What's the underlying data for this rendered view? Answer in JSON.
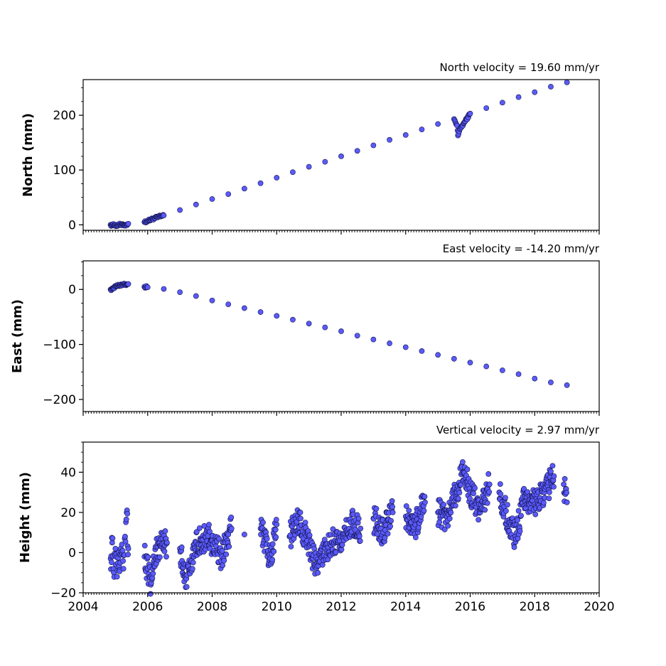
{
  "chart_data": [
    {
      "type": "scatter",
      "title": "North velocity = 19.60 mm/yr",
      "ylabel": "North (mm)",
      "xlim": [
        2004,
        2020
      ],
      "ylim": [
        -10,
        265
      ],
      "yticks": [
        0,
        100,
        200
      ],
      "ytick_labels": [
        "0",
        "100",
        "200"
      ],
      "velocity_mm_per_yr": 19.6,
      "color": "#5a5afa",
      "series": [
        {
          "points": [
            [
              2004.85,
              0
            ],
            [
              2004.9,
              0.5
            ],
            [
              2004.95,
              -1
            ],
            [
              2005.0,
              0
            ],
            [
              2005.05,
              -2
            ],
            [
              2005.1,
              1
            ],
            [
              2005.15,
              0
            ],
            [
              2005.2,
              -1
            ],
            [
              2005.25,
              0
            ],
            [
              2005.3,
              -0.5
            ],
            [
              2005.35,
              0.5
            ],
            [
              2005.4,
              2
            ],
            [
              2005.9,
              5
            ],
            [
              2006.0,
              7
            ],
            [
              2006.2,
              12
            ],
            [
              2006.5,
              17
            ],
            [
              2007.0,
              27
            ],
            [
              2007.5,
              37
            ],
            [
              2008.0,
              47
            ],
            [
              2008.5,
              56
            ],
            [
              2009.0,
              66
            ],
            [
              2009.5,
              76
            ],
            [
              2010.0,
              86
            ],
            [
              2010.5,
              96
            ],
            [
              2011.0,
              106
            ],
            [
              2011.5,
              115
            ],
            [
              2012.0,
              125
            ],
            [
              2012.5,
              135
            ],
            [
              2013.0,
              145
            ],
            [
              2013.5,
              155
            ],
            [
              2014.0,
              164
            ],
            [
              2014.5,
              174
            ],
            [
              2015.0,
              184
            ],
            [
              2015.5,
              193
            ],
            [
              2015.6,
              181
            ],
            [
              2015.62,
              163
            ],
            [
              2015.7,
              176
            ],
            [
              2016.0,
              203
            ],
            [
              2016.5,
              213
            ],
            [
              2017.0,
              223
            ],
            [
              2017.5,
              233
            ],
            [
              2018.0,
              242
            ],
            [
              2018.5,
              252
            ],
            [
              2019.0,
              260
            ]
          ]
        }
      ]
    },
    {
      "type": "scatter",
      "title": "East velocity = -14.20 mm/yr",
      "ylabel": "East (mm)",
      "xlim": [
        2004,
        2020
      ],
      "ylim": [
        -222,
        52
      ],
      "yticks": [
        -200,
        -100,
        0
      ],
      "ytick_labels": [
        "−200",
        "−100",
        "0"
      ],
      "velocity_mm_per_yr": -14.2,
      "color": "#5a5afa",
      "series": [
        {
          "points": [
            [
              2004.85,
              0
            ],
            [
              2004.9,
              2
            ],
            [
              2004.95,
              3
            ],
            [
              2005.0,
              5
            ],
            [
              2005.05,
              6
            ],
            [
              2005.1,
              7
            ],
            [
              2005.15,
              8
            ],
            [
              2005.2,
              9
            ],
            [
              2005.25,
              10
            ],
            [
              2005.3,
              10
            ],
            [
              2005.35,
              9
            ],
            [
              2005.4,
              10
            ],
            [
              2005.9,
              5
            ],
            [
              2006.0,
              4
            ],
            [
              2006.5,
              1
            ],
            [
              2007.0,
              -5
            ],
            [
              2007.5,
              -12
            ],
            [
              2008.0,
              -20
            ],
            [
              2008.5,
              -27
            ],
            [
              2009.0,
              -34
            ],
            [
              2009.5,
              -41
            ],
            [
              2010.0,
              -48
            ],
            [
              2010.5,
              -55
            ],
            [
              2011.0,
              -62
            ],
            [
              2011.5,
              -69
            ],
            [
              2012.0,
              -76
            ],
            [
              2012.5,
              -84
            ],
            [
              2013.0,
              -91
            ],
            [
              2013.5,
              -98
            ],
            [
              2014.0,
              -105
            ],
            [
              2014.5,
              -112
            ],
            [
              2015.0,
              -119
            ],
            [
              2015.5,
              -126
            ],
            [
              2016.0,
              -133
            ],
            [
              2016.5,
              -140
            ],
            [
              2017.0,
              -147
            ],
            [
              2017.5,
              -154
            ],
            [
              2018.0,
              -162
            ],
            [
              2018.5,
              -169
            ],
            [
              2019.0,
              -174
            ]
          ]
        }
      ]
    },
    {
      "type": "scatter",
      "title": "Vertical velocity = 2.97 mm/yr",
      "ylabel": "Height (mm)",
      "xlim": [
        2004,
        2020
      ],
      "ylim": [
        -20,
        55
      ],
      "yticks": [
        -20,
        0,
        20,
        40
      ],
      "ytick_labels": [
        "−20",
        "0",
        "20",
        "40"
      ],
      "xticks": [
        2004,
        2006,
        2008,
        2010,
        2012,
        2014,
        2016,
        2018,
        2020
      ],
      "xtick_labels": [
        "2004",
        "2006",
        "2008",
        "2010",
        "2012",
        "2014",
        "2016",
        "2018",
        "2020"
      ],
      "velocity_mm_per_yr": 2.97,
      "color": "#5a5afa",
      "series": [
        {
          "points": [
            [
              2004.85,
              -3
            ],
            [
              2004.9,
              5
            ],
            [
              2004.95,
              -10
            ],
            [
              2005.0,
              2
            ],
            [
              2005.05,
              -12
            ],
            [
              2005.1,
              0
            ],
            [
              2005.15,
              -5
            ],
            [
              2005.2,
              4
            ],
            [
              2005.25,
              -8
            ],
            [
              2005.3,
              8
            ],
            [
              2005.35,
              20
            ],
            [
              2005.4,
              2
            ],
            [
              2005.9,
              -2
            ],
            [
              2006.0,
              -8
            ],
            [
              2006.1,
              -16
            ],
            [
              2006.3,
              3
            ],
            [
              2006.6,
              5
            ],
            [
              2007.0,
              2
            ],
            [
              2007.2,
              -13
            ],
            [
              2007.5,
              5
            ],
            [
              2007.8,
              8
            ],
            [
              2008.0,
              6
            ],
            [
              2008.3,
              -2
            ],
            [
              2008.6,
              12
            ],
            [
              2009.0,
              9
            ],
            [
              2009.5,
              12
            ],
            [
              2009.8,
              -3
            ],
            [
              2010.0,
              14
            ],
            [
              2010.4,
              8
            ],
            [
              2010.7,
              17
            ],
            [
              2011.0,
              3
            ],
            [
              2011.2,
              -6
            ],
            [
              2011.5,
              2
            ],
            [
              2011.8,
              6
            ],
            [
              2012.0,
              8
            ],
            [
              2012.3,
              15
            ],
            [
              2012.6,
              12
            ],
            [
              2013.0,
              17
            ],
            [
              2013.3,
              10
            ],
            [
              2013.6,
              20
            ],
            [
              2014.0,
              18
            ],
            [
              2014.3,
              14
            ],
            [
              2014.6,
              25
            ],
            [
              2015.0,
              20
            ],
            [
              2015.3,
              16
            ],
            [
              2015.6,
              32
            ],
            [
              2015.8,
              40
            ],
            [
              2016.0,
              30
            ],
            [
              2016.3,
              22
            ],
            [
              2016.6,
              34
            ],
            [
              2016.9,
              30
            ],
            [
              2017.2,
              15
            ],
            [
              2017.4,
              8
            ],
            [
              2017.7,
              28
            ],
            [
              2018.0,
              24
            ],
            [
              2018.3,
              30
            ],
            [
              2018.6,
              38
            ],
            [
              2018.9,
              34
            ],
            [
              2019.0,
              25
            ]
          ]
        }
      ]
    }
  ]
}
